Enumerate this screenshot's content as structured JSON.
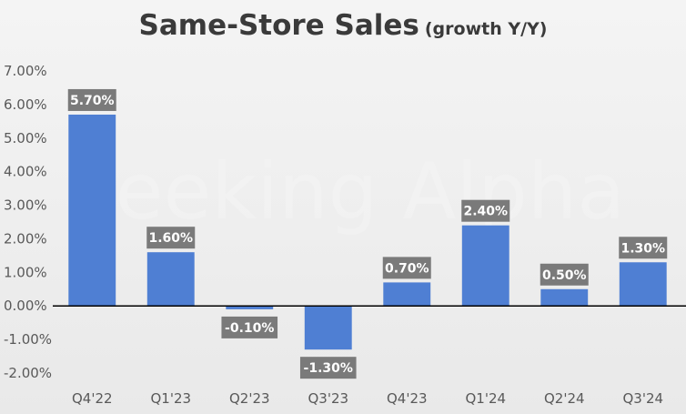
{
  "chart_data": {
    "type": "bar",
    "title": "Same-Store Sales",
    "subtitle": "(growth Y/Y)",
    "categories": [
      "Q4'22",
      "Q1'23",
      "Q2'23",
      "Q3'23",
      "Q4'23",
      "Q1'24",
      "Q2'24",
      "Q3'24"
    ],
    "values": [
      5.7,
      1.6,
      -0.1,
      -1.3,
      0.7,
      2.4,
      0.5,
      1.3
    ],
    "data_labels": [
      "5.70%",
      "1.60%",
      "-0.10%",
      "-1.30%",
      "0.70%",
      "2.40%",
      "0.50%",
      "1.30%"
    ],
    "y_ticks": [
      "7.00%",
      "6.00%",
      "5.00%",
      "4.00%",
      "3.00%",
      "2.00%",
      "1.00%",
      "0.00%",
      "-1.00%",
      "-2.00%"
    ],
    "ylim": [
      -2,
      7
    ],
    "xlabel": "",
    "ylabel": "",
    "grid": false,
    "legend": "none",
    "watermark": "Seeking Alpha",
    "colors": {
      "bar": "#4f7fd3",
      "label_bg": "#7a7a7a",
      "axis": "#000000",
      "title": "#3a3a3a"
    }
  }
}
